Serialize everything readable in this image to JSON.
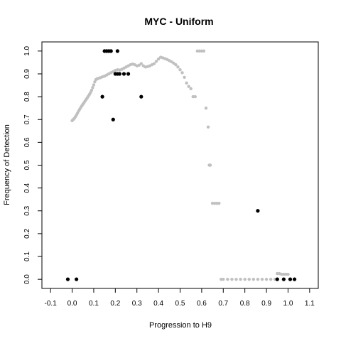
{
  "chart_data": {
    "type": "scatter",
    "title": "MYC - Uniform",
    "xlabel": "Progression to H9",
    "ylabel": "Frequency of Detection",
    "xlim": [
      -0.14,
      1.14
    ],
    "ylim": [
      -0.04,
      1.04
    ],
    "xticks": [
      "-0.1",
      "0.0",
      "0.1",
      "0.2",
      "0.3",
      "0.4",
      "0.5",
      "0.6",
      "0.7",
      "0.8",
      "0.9",
      "1.0",
      "1.1"
    ],
    "yticks": [
      "0.0",
      "0.1",
      "0.2",
      "0.3",
      "0.4",
      "0.5",
      "0.6",
      "0.7",
      "0.8",
      "0.9",
      "1.0"
    ],
    "grid": false,
    "colors": {
      "grey_series": "#c0c0c0",
      "black_series": "#000000"
    },
    "series": [
      {
        "color": "grey",
        "points": [
          [
            0.0,
            0.695
          ],
          [
            0.005,
            0.7
          ],
          [
            0.01,
            0.705
          ],
          [
            0.015,
            0.712
          ],
          [
            0.02,
            0.72
          ],
          [
            0.025,
            0.728
          ],
          [
            0.03,
            0.737
          ],
          [
            0.035,
            0.745
          ],
          [
            0.04,
            0.753
          ],
          [
            0.045,
            0.76
          ],
          [
            0.05,
            0.767
          ],
          [
            0.055,
            0.774
          ],
          [
            0.06,
            0.781
          ],
          [
            0.065,
            0.788
          ],
          [
            0.07,
            0.795
          ],
          [
            0.075,
            0.802
          ],
          [
            0.08,
            0.81
          ],
          [
            0.085,
            0.818
          ],
          [
            0.09,
            0.828
          ],
          [
            0.095,
            0.84
          ],
          [
            0.1,
            0.852
          ],
          [
            0.105,
            0.865
          ],
          [
            0.11,
            0.875
          ],
          [
            0.115,
            0.878
          ],
          [
            0.12,
            0.88
          ],
          [
            0.13,
            0.883
          ],
          [
            0.14,
            0.887
          ],
          [
            0.15,
            0.89
          ],
          [
            0.16,
            0.895
          ],
          [
            0.17,
            0.9
          ],
          [
            0.18,
            0.905
          ],
          [
            0.19,
            0.91
          ],
          [
            0.2,
            0.915
          ],
          [
            0.21,
            0.918
          ],
          [
            0.22,
            0.917
          ],
          [
            0.23,
            0.92
          ],
          [
            0.24,
            0.925
          ],
          [
            0.25,
            0.93
          ],
          [
            0.26,
            0.935
          ],
          [
            0.27,
            0.94
          ],
          [
            0.28,
            0.943
          ],
          [
            0.29,
            0.94
          ],
          [
            0.3,
            0.935
          ],
          [
            0.31,
            0.938
          ],
          [
            0.32,
            0.945
          ],
          [
            0.33,
            0.935
          ],
          [
            0.34,
            0.93
          ],
          [
            0.35,
            0.932
          ],
          [
            0.36,
            0.935
          ],
          [
            0.37,
            0.94
          ],
          [
            0.38,
            0.945
          ],
          [
            0.39,
            0.955
          ],
          [
            0.4,
            0.965
          ],
          [
            0.41,
            0.973
          ],
          [
            0.42,
            0.97
          ],
          [
            0.43,
            0.967
          ],
          [
            0.44,
            0.963
          ],
          [
            0.45,
            0.958
          ],
          [
            0.46,
            0.953
          ],
          [
            0.47,
            0.947
          ],
          [
            0.48,
            0.94
          ],
          [
            0.49,
            0.93
          ],
          [
            0.5,
            0.918
          ],
          [
            0.51,
            0.905
          ],
          [
            0.52,
            0.885
          ],
          [
            0.53,
            0.86
          ],
          [
            0.54,
            0.845
          ],
          [
            0.55,
            0.835
          ],
          [
            0.56,
            0.8
          ],
          [
            0.57,
            0.8
          ],
          [
            0.58,
            1.0
          ],
          [
            0.59,
            1.0
          ],
          [
            0.6,
            1.0
          ],
          [
            0.61,
            1.0
          ],
          [
            0.62,
            0.75
          ],
          [
            0.63,
            0.667
          ],
          [
            0.635,
            0.5
          ],
          [
            0.64,
            0.5
          ],
          [
            0.65,
            0.333
          ],
          [
            0.66,
            0.333
          ],
          [
            0.67,
            0.333
          ],
          [
            0.68,
            0.333
          ],
          [
            0.69,
            0.0
          ],
          [
            0.7,
            0.0
          ],
          [
            0.72,
            0.0
          ],
          [
            0.74,
            0.0
          ],
          [
            0.76,
            0.0
          ],
          [
            0.78,
            0.0
          ],
          [
            0.8,
            0.0
          ],
          [
            0.82,
            0.0
          ],
          [
            0.84,
            0.0
          ],
          [
            0.86,
            0.0
          ],
          [
            0.88,
            0.0
          ],
          [
            0.9,
            0.0
          ],
          [
            0.92,
            0.0
          ],
          [
            0.94,
            0.0
          ],
          [
            0.95,
            0.025
          ],
          [
            0.96,
            0.025
          ],
          [
            0.97,
            0.022
          ],
          [
            0.98,
            0.022
          ],
          [
            0.99,
            0.022
          ],
          [
            1.0,
            0.022
          ]
        ]
      },
      {
        "color": "black",
        "points": [
          [
            -0.02,
            0.0
          ],
          [
            0.02,
            0.0
          ],
          [
            0.14,
            0.8
          ],
          [
            0.19,
            0.7
          ],
          [
            0.32,
            0.8
          ],
          [
            0.15,
            1.0
          ],
          [
            0.16,
            1.0
          ],
          [
            0.17,
            1.0
          ],
          [
            0.18,
            1.0
          ],
          [
            0.21,
            1.0
          ],
          [
            0.2,
            0.9
          ],
          [
            0.21,
            0.9
          ],
          [
            0.22,
            0.9
          ],
          [
            0.24,
            0.9
          ],
          [
            0.26,
            0.9
          ],
          [
            0.86,
            0.3
          ],
          [
            0.95,
            0.0
          ],
          [
            0.98,
            0.0
          ],
          [
            1.01,
            0.0
          ],
          [
            1.03,
            0.0
          ]
        ]
      }
    ]
  }
}
